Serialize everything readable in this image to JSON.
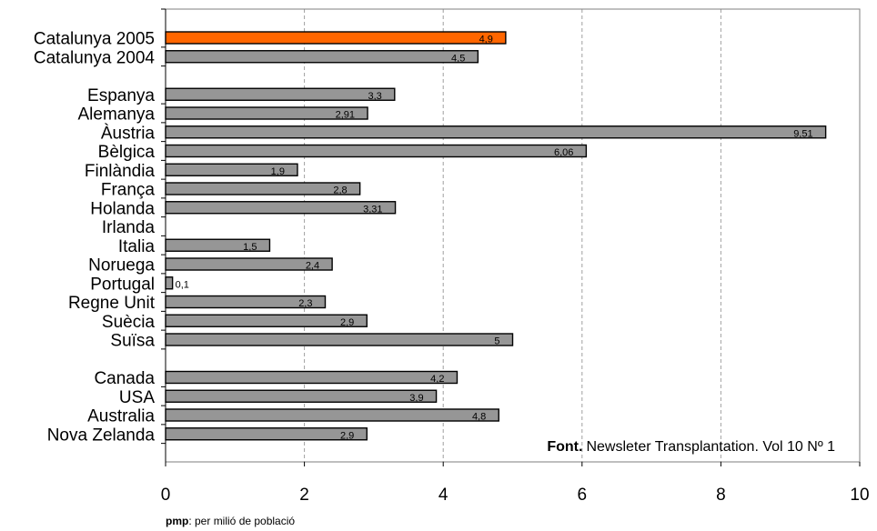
{
  "chart_data": {
    "type": "bar",
    "orientation": "horizontal",
    "categories": [
      "Catalunya 2005",
      "Catalunya 2004",
      "Espanya",
      "Alemanya",
      "Àustria",
      "Bèlgica",
      "Finlàndia",
      "França",
      "Holanda",
      "Irlanda",
      "Italia",
      "Noruega",
      "Portugal",
      "Regne Unit",
      "Suècia",
      "Suïsa",
      "Canada",
      "USA",
      "Australia",
      "Nova Zelanda"
    ],
    "values": [
      4.9,
      4.5,
      3.3,
      2.91,
      9.51,
      6.06,
      1.9,
      2.8,
      3.31,
      null,
      1.5,
      2.4,
      0.1,
      2.3,
      2.9,
      5,
      4.2,
      3.9,
      4.8,
      2.9
    ],
    "value_labels": [
      "4,9",
      "4,5",
      "3,3",
      "2,91",
      "9,51",
      "6,06",
      "1,9",
      "2,8",
      "3,31",
      "",
      "1,5",
      "2,4",
      "0,1",
      "2,3",
      "2,9",
      "5",
      "4,2",
      "3,9",
      "4,8",
      "2,9"
    ],
    "highlight": "Catalunya 2005",
    "xlim": [
      0,
      10
    ],
    "xticks": [
      0,
      2,
      4,
      6,
      8,
      10
    ],
    "grid": "vertical dashed",
    "legend": "none"
  },
  "source": {
    "prefix": "Font.",
    "text": "Newsleter Transplantation. Vol 10 Nº 1"
  },
  "note": {
    "abbr": "pmp",
    "text": ": per milió de població"
  },
  "colors": {
    "bar": "#969696",
    "highlight": "#ff6600",
    "border": "#000000",
    "grid": "#a0a0a0",
    "axis": "#7f7f7f"
  }
}
